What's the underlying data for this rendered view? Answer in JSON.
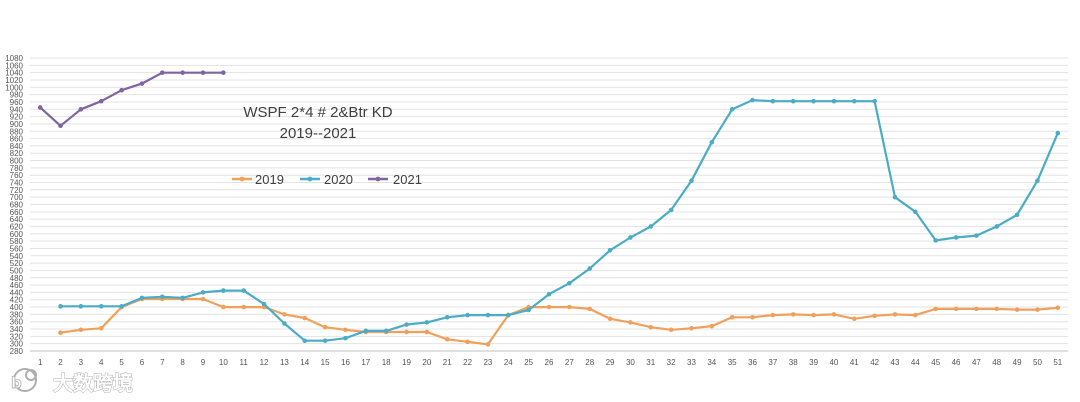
{
  "chart_data": {
    "type": "line",
    "title": [
      "WSPF 2*4 # 2&Btr KD",
      "2019--2021"
    ],
    "xlabel": "",
    "ylabel": "",
    "x": [
      1,
      2,
      3,
      4,
      5,
      6,
      7,
      8,
      9,
      10,
      11,
      12,
      13,
      14,
      15,
      16,
      17,
      18,
      19,
      20,
      21,
      22,
      23,
      24,
      25,
      26,
      27,
      28,
      29,
      30,
      31,
      32,
      33,
      34,
      35,
      36,
      37,
      38,
      39,
      40,
      41,
      42,
      43,
      44,
      45,
      46,
      47,
      48,
      49,
      50,
      51
    ],
    "ylim": [
      280,
      1080
    ],
    "yticks": [
      280,
      300,
      320,
      340,
      360,
      380,
      400,
      420,
      440,
      460,
      480,
      500,
      520,
      540,
      560,
      580,
      600,
      620,
      640,
      660,
      680,
      700,
      720,
      740,
      760,
      780,
      800,
      820,
      840,
      860,
      880,
      900,
      920,
      940,
      960,
      980,
      1000,
      1020,
      1040,
      1060,
      1080
    ],
    "grid": true,
    "legend_position": "left, inside plot",
    "series": [
      {
        "name": "2019",
        "color": "#F0A05A",
        "points": [
          [
            2,
            330
          ],
          [
            3,
            338
          ],
          [
            4,
            342
          ],
          [
            5,
            400
          ],
          [
            6,
            422
          ],
          [
            7,
            422
          ],
          [
            8,
            422
          ],
          [
            9,
            422
          ],
          [
            10,
            400
          ],
          [
            11,
            400
          ],
          [
            12,
            400
          ],
          [
            13,
            380
          ],
          [
            14,
            370
          ],
          [
            15,
            345
          ],
          [
            16,
            338
          ],
          [
            17,
            332
          ],
          [
            18,
            332
          ],
          [
            19,
            332
          ],
          [
            20,
            332
          ],
          [
            21,
            312
          ],
          [
            22,
            305
          ],
          [
            23,
            298
          ],
          [
            24,
            378
          ],
          [
            25,
            400
          ],
          [
            26,
            400
          ],
          [
            27,
            400
          ],
          [
            28,
            395
          ],
          [
            29,
            368
          ],
          [
            30,
            358
          ],
          [
            31,
            345
          ],
          [
            32,
            338
          ],
          [
            33,
            342
          ],
          [
            34,
            348
          ],
          [
            35,
            372
          ],
          [
            36,
            372
          ],
          [
            37,
            378
          ],
          [
            38,
            380
          ],
          [
            39,
            378
          ],
          [
            40,
            380
          ],
          [
            41,
            368
          ],
          [
            42,
            376
          ],
          [
            43,
            380
          ],
          [
            44,
            378
          ],
          [
            45,
            395
          ],
          [
            46,
            395
          ],
          [
            47,
            395
          ],
          [
            48,
            395
          ],
          [
            49,
            393
          ],
          [
            50,
            393
          ],
          [
            51,
            398
          ]
        ]
      },
      {
        "name": "2020",
        "color": "#4BACC6",
        "points": [
          [
            2,
            402
          ],
          [
            3,
            402
          ],
          [
            4,
            402
          ],
          [
            5,
            402
          ],
          [
            6,
            425
          ],
          [
            7,
            428
          ],
          [
            8,
            425
          ],
          [
            9,
            440
          ],
          [
            10,
            445
          ],
          [
            11,
            445
          ],
          [
            12,
            408
          ],
          [
            13,
            355
          ],
          [
            14,
            308
          ],
          [
            15,
            308
          ],
          [
            16,
            315
          ],
          [
            17,
            335
          ],
          [
            18,
            335
          ],
          [
            19,
            352
          ],
          [
            20,
            358
          ],
          [
            21,
            372
          ],
          [
            22,
            378
          ],
          [
            23,
            378
          ],
          [
            24,
            378
          ],
          [
            25,
            392
          ],
          [
            26,
            435
          ],
          [
            27,
            465
          ],
          [
            28,
            505
          ],
          [
            29,
            555
          ],
          [
            30,
            590
          ],
          [
            31,
            620
          ],
          [
            32,
            665
          ],
          [
            33,
            745
          ],
          [
            34,
            850
          ],
          [
            35,
            940
          ],
          [
            36,
            965
          ],
          [
            37,
            962
          ],
          [
            38,
            962
          ],
          [
            39,
            962
          ],
          [
            40,
            962
          ],
          [
            41,
            962
          ],
          [
            42,
            962
          ],
          [
            43,
            700
          ],
          [
            44,
            660
          ],
          [
            45,
            582
          ],
          [
            46,
            590
          ],
          [
            47,
            595
          ],
          [
            48,
            620
          ],
          [
            49,
            652
          ],
          [
            50,
            745
          ],
          [
            51,
            875
          ]
        ]
      },
      {
        "name": "2021",
        "color": "#8064A2",
        "points": [
          [
            1,
            945
          ],
          [
            2,
            895
          ],
          [
            3,
            940
          ],
          [
            4,
            962
          ],
          [
            5,
            992
          ],
          [
            6,
            1010
          ],
          [
            7,
            1040
          ],
          [
            8,
            1040
          ],
          [
            9,
            1040
          ],
          [
            10,
            1040
          ]
        ]
      }
    ]
  },
  "watermark": {
    "text": "大数跨境",
    "logo_text": "b"
  }
}
